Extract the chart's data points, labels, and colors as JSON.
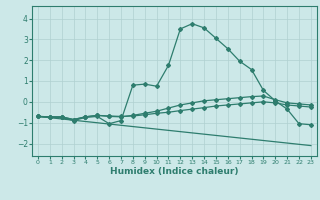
{
  "xlabel": "Humidex (Indice chaleur)",
  "bg_color": "#cce8e8",
  "grid_color": "#b0d0d0",
  "line_color": "#2e7d6e",
  "xlim": [
    -0.5,
    23.5
  ],
  "ylim": [
    -2.6,
    4.6
  ],
  "xticks": [
    0,
    1,
    2,
    3,
    4,
    5,
    6,
    7,
    8,
    9,
    10,
    11,
    12,
    13,
    14,
    15,
    16,
    17,
    18,
    19,
    20,
    21,
    22,
    23
  ],
  "yticks": [
    -2,
    -1,
    0,
    1,
    2,
    3,
    4
  ],
  "series1_x": [
    0,
    1,
    2,
    3,
    4,
    5,
    6,
    7,
    8,
    9,
    10,
    11,
    12,
    13,
    14,
    15,
    16,
    17,
    18,
    19,
    20,
    21,
    22,
    23
  ],
  "series1_y": [
    -0.7,
    -0.75,
    -0.75,
    -0.9,
    -0.75,
    -0.7,
    -1.05,
    -0.9,
    0.8,
    0.85,
    0.75,
    1.75,
    3.5,
    3.75,
    3.55,
    3.05,
    2.55,
    1.95,
    1.55,
    0.55,
    0.05,
    -0.35,
    -1.05,
    -1.1
  ],
  "series2_x": [
    0,
    1,
    2,
    3,
    4,
    5,
    6,
    7,
    8,
    9,
    10,
    11,
    12,
    13,
    14,
    15,
    16,
    17,
    18,
    19,
    20,
    21,
    22,
    23
  ],
  "series2_y": [
    -0.7,
    -0.72,
    -0.72,
    -0.85,
    -0.72,
    -0.65,
    -0.7,
    -0.72,
    -0.65,
    -0.55,
    -0.45,
    -0.3,
    -0.15,
    -0.05,
    0.05,
    0.1,
    0.15,
    0.2,
    0.25,
    0.28,
    0.1,
    -0.05,
    -0.1,
    -0.15
  ],
  "series3_x": [
    0,
    1,
    2,
    3,
    4,
    5,
    6,
    7,
    8,
    9,
    10,
    11,
    12,
    13,
    14,
    15,
    16,
    17,
    18,
    19,
    20,
    21,
    22,
    23
  ],
  "series3_y": [
    -0.7,
    -0.72,
    -0.72,
    -0.85,
    -0.72,
    -0.65,
    -0.68,
    -0.7,
    -0.68,
    -0.62,
    -0.55,
    -0.5,
    -0.42,
    -0.35,
    -0.28,
    -0.2,
    -0.15,
    -0.1,
    -0.05,
    0.0,
    -0.05,
    -0.15,
    -0.2,
    -0.25
  ],
  "series4_x": [
    0,
    23
  ],
  "series4_y": [
    -0.7,
    -2.1
  ]
}
